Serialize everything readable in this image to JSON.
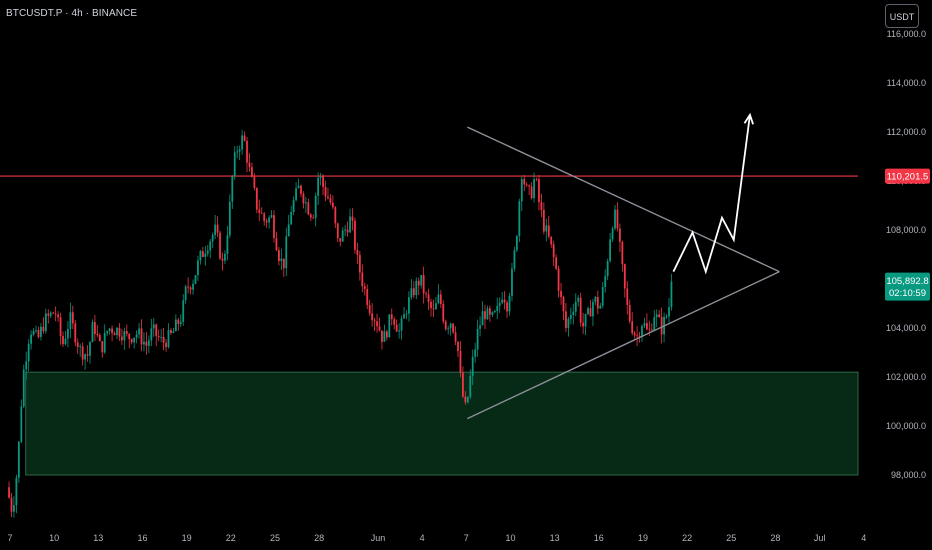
{
  "header": {
    "symbol_line": "BTCUSDT.P · 4h · BINANCE",
    "currency_button": "USDT"
  },
  "chart_data": {
    "type": "candlestick",
    "symbol": "BTCUSDT.P",
    "interval": "4h",
    "exchange": "BINANCE",
    "ylim": [
      96000,
      117000
    ],
    "y_ticks": [
      98000,
      100000,
      102000,
      104000,
      106000,
      108000,
      110000,
      112000,
      114000,
      116000
    ],
    "y_tick_labels": [
      "98,000.0",
      "100,000.0",
      "102,000.0",
      "104,000.0",
      "106,000.0",
      "108,000.0",
      "110,000.0",
      "112,000.0",
      "114,000.0",
      "116,000.0"
    ],
    "x_tick_labels": [
      "7",
      "10",
      "13",
      "16",
      "19",
      "22",
      "25",
      "28",
      "Jun",
      "4",
      "7",
      "10",
      "13",
      "16",
      "19",
      "22",
      "25",
      "28",
      "Jul",
      "4"
    ],
    "x_ticks_day_index": [
      0,
      3,
      6,
      9,
      12,
      15,
      18,
      21,
      25,
      28,
      31,
      34,
      37,
      40,
      43,
      46,
      49,
      52,
      55,
      58
    ],
    "price_path": [
      [
        -0.3,
        97500
      ],
      [
        0.1,
        96500
      ],
      [
        0.45,
        98400
      ],
      [
        0.8,
        102000
      ],
      [
        1.3,
        104000
      ],
      [
        1.8,
        103500
      ],
      [
        2.3,
        104300
      ],
      [
        3.0,
        104700
      ],
      [
        3.5,
        103300
      ],
      [
        4.0,
        104400
      ],
      [
        4.7,
        103100
      ],
      [
        5.2,
        102900
      ],
      [
        5.6,
        104200
      ],
      [
        6.1,
        103100
      ],
      [
        6.6,
        104000
      ],
      [
        7.4,
        103900
      ],
      [
        7.9,
        103600
      ],
      [
        8.6,
        103800
      ],
      [
        9.2,
        103300
      ],
      [
        9.6,
        103900
      ],
      [
        10.3,
        103400
      ],
      [
        10.9,
        103700
      ],
      [
        11.6,
        104500
      ],
      [
        11.9,
        105600
      ],
      [
        12.4,
        106000
      ],
      [
        12.8,
        106800
      ],
      [
        13.3,
        107400
      ],
      [
        13.9,
        108000
      ],
      [
        14.4,
        106500
      ],
      [
        14.8,
        108500
      ],
      [
        15.1,
        110600
      ],
      [
        15.4,
        111400
      ],
      [
        15.8,
        111800
      ],
      [
        16.2,
        110400
      ],
      [
        16.7,
        109000
      ],
      [
        17.2,
        108400
      ],
      [
        17.7,
        108500
      ],
      [
        18.2,
        107000
      ],
      [
        18.5,
        106500
      ],
      [
        19.0,
        108800
      ],
      [
        19.6,
        109800
      ],
      [
        20.1,
        109000
      ],
      [
        20.5,
        108600
      ],
      [
        20.9,
        110300
      ],
      [
        21.3,
        109600
      ],
      [
        21.8,
        109000
      ],
      [
        22.2,
        107500
      ],
      [
        22.6,
        107900
      ],
      [
        23.1,
        108500
      ],
      [
        23.5,
        106800
      ],
      [
        24.0,
        105600
      ],
      [
        24.4,
        104800
      ],
      [
        24.9,
        104200
      ],
      [
        25.3,
        103500
      ],
      [
        25.9,
        104600
      ],
      [
        26.4,
        103800
      ],
      [
        26.9,
        104900
      ],
      [
        27.4,
        105600
      ],
      [
        27.8,
        106000
      ],
      [
        28.3,
        105000
      ],
      [
        28.7,
        104600
      ],
      [
        29.1,
        105300
      ],
      [
        29.5,
        104100
      ],
      [
        29.9,
        104300
      ],
      [
        30.3,
        103500
      ],
      [
        30.6,
        101500
      ],
      [
        30.9,
        100600
      ],
      [
        31.3,
        102400
      ],
      [
        31.7,
        103800
      ],
      [
        32.1,
        104700
      ],
      [
        32.6,
        104300
      ],
      [
        33.0,
        104600
      ],
      [
        33.4,
        105500
      ],
      [
        33.7,
        105000
      ],
      [
        34.0,
        106000
      ],
      [
        34.3,
        107500
      ],
      [
        34.5,
        109000
      ],
      [
        34.7,
        110400
      ],
      [
        35.0,
        109600
      ],
      [
        35.3,
        109400
      ],
      [
        35.6,
        110200
      ],
      [
        35.9,
        109000
      ],
      [
        36.2,
        108200
      ],
      [
        36.6,
        107500
      ],
      [
        37.0,
        106500
      ],
      [
        37.4,
        105000
      ],
      [
        37.7,
        104000
      ],
      [
        38.1,
        104800
      ],
      [
        38.5,
        105300
      ],
      [
        38.8,
        104000
      ],
      [
        39.2,
        104500
      ],
      [
        39.6,
        105200
      ],
      [
        40.0,
        104800
      ],
      [
        40.4,
        106200
      ],
      [
        40.8,
        108300
      ],
      [
        41.1,
        108600
      ],
      [
        41.5,
        106500
      ],
      [
        41.8,
        105000
      ],
      [
        42.1,
        104200
      ],
      [
        42.5,
        103600
      ],
      [
        42.9,
        104300
      ],
      [
        43.3,
        103700
      ],
      [
        43.7,
        104600
      ],
      [
        44.2,
        104000
      ],
      [
        44.6,
        104600
      ],
      [
        44.9,
        105500
      ],
      [
        45.0,
        106200
      ]
    ],
    "annotations": {
      "resistance_line": {
        "price": 110201.5,
        "label": "110,201.5",
        "color": "#f23645"
      },
      "support_zone": {
        "from": 98000,
        "to": 102200,
        "color": "#0b3d22"
      },
      "triangle_upper": [
        [
          31.0,
          112200
        ],
        [
          52.2,
          106300
        ]
      ],
      "triangle_lower": [
        [
          31.0,
          100300
        ],
        [
          52.2,
          106300
        ]
      ],
      "projection_path": [
        [
          45.0,
          106300
        ],
        [
          46.3,
          107900
        ],
        [
          47.2,
          106300
        ],
        [
          48.3,
          108500
        ],
        [
          49.1,
          107600
        ],
        [
          50.2,
          112700
        ]
      ],
      "projection_color": "#ffffff"
    },
    "last_price": {
      "value": 105892.8,
      "label": "105,892.8",
      "countdown": "02:10:59",
      "color": "#089981"
    },
    "up_color": "#089981",
    "down_color": "#f23645",
    "grid": false
  }
}
